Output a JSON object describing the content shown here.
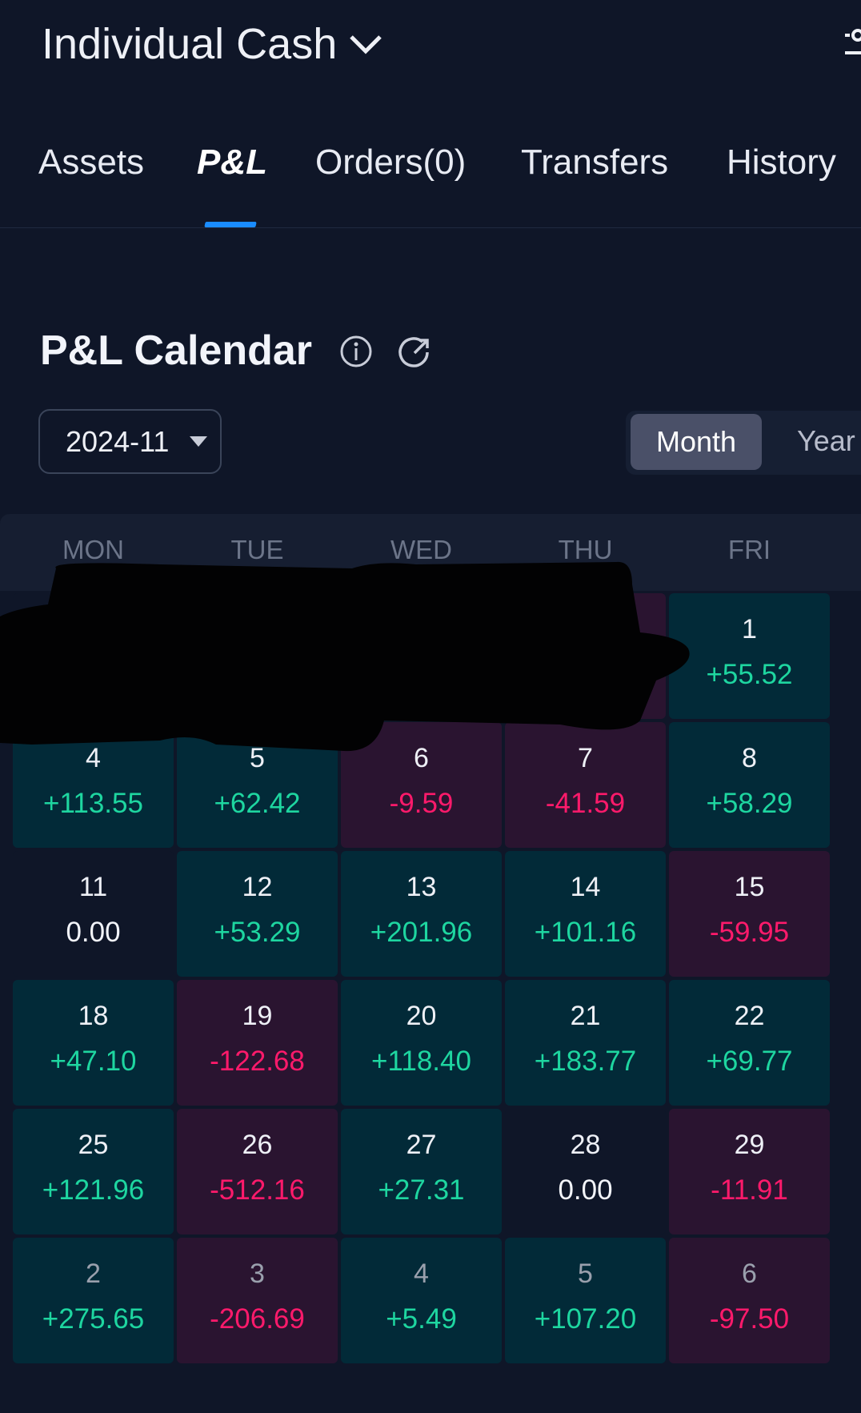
{
  "header": {
    "account": "Individual Cash"
  },
  "tabs": [
    {
      "label": "Assets",
      "active": false
    },
    {
      "label": "P&L",
      "active": true
    },
    {
      "label": "Orders(0)",
      "active": false
    },
    {
      "label": "Transfers",
      "active": false
    },
    {
      "label": "History",
      "active": false
    }
  ],
  "calendar": {
    "title": "P&L Calendar",
    "selected_month": "2024-11",
    "view_options": [
      "Month",
      "Year"
    ],
    "selected_view": "Month",
    "weekdays": [
      "MON",
      "TUE",
      "WED",
      "THU",
      "FRI"
    ],
    "colors": {
      "positive": "#1ed6a0",
      "negative": "#ff1a6b"
    },
    "days": [
      {
        "day": null,
        "value": null,
        "tone": "zero",
        "redacted": true
      },
      {
        "day": null,
        "value": null,
        "tone": "zero",
        "redacted": true
      },
      {
        "day": null,
        "value": null,
        "tone": "pos",
        "redacted": true
      },
      {
        "day": null,
        "value": null,
        "tone": "neg",
        "redacted": true
      },
      {
        "day": "1",
        "value": "+55.52",
        "tone": "pos"
      },
      {
        "day": "4",
        "value": "+113.55",
        "tone": "pos"
      },
      {
        "day": "5",
        "value": "+62.42",
        "tone": "pos"
      },
      {
        "day": "6",
        "value": "-9.59",
        "tone": "neg"
      },
      {
        "day": "7",
        "value": "-41.59",
        "tone": "neg"
      },
      {
        "day": "8",
        "value": "+58.29",
        "tone": "pos"
      },
      {
        "day": "11",
        "value": "0.00",
        "tone": "zero"
      },
      {
        "day": "12",
        "value": "+53.29",
        "tone": "pos"
      },
      {
        "day": "13",
        "value": "+201.96",
        "tone": "pos"
      },
      {
        "day": "14",
        "value": "+101.16",
        "tone": "pos"
      },
      {
        "day": "15",
        "value": "-59.95",
        "tone": "neg"
      },
      {
        "day": "18",
        "value": "+47.10",
        "tone": "pos"
      },
      {
        "day": "19",
        "value": "-122.68",
        "tone": "neg"
      },
      {
        "day": "20",
        "value": "+118.40",
        "tone": "pos"
      },
      {
        "day": "21",
        "value": "+183.77",
        "tone": "pos"
      },
      {
        "day": "22",
        "value": "+69.77",
        "tone": "pos"
      },
      {
        "day": "25",
        "value": "+121.96",
        "tone": "pos"
      },
      {
        "day": "26",
        "value": "-512.16",
        "tone": "neg"
      },
      {
        "day": "27",
        "value": "+27.31",
        "tone": "pos"
      },
      {
        "day": "28",
        "value": "0.00",
        "tone": "zero"
      },
      {
        "day": "29",
        "value": "-11.91",
        "tone": "neg"
      },
      {
        "day": "2",
        "value": "+275.65",
        "tone": "pos",
        "other_month": true
      },
      {
        "day": "3",
        "value": "-206.69",
        "tone": "neg",
        "other_month": true
      },
      {
        "day": "4",
        "value": "+5.49",
        "tone": "pos",
        "other_month": true
      },
      {
        "day": "5",
        "value": "+107.20",
        "tone": "pos",
        "other_month": true
      },
      {
        "day": "6",
        "value": "-97.50",
        "tone": "neg",
        "other_month": true
      }
    ]
  }
}
